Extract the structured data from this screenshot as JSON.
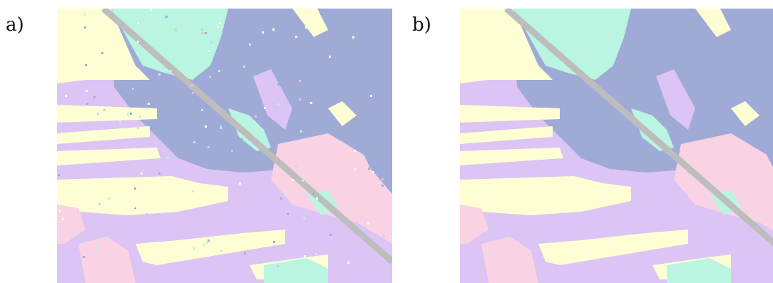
{
  "panels": [
    {
      "label": "a)"
    },
    {
      "label": "b)"
    }
  ],
  "palette": {
    "lavender": "#dcc4f4",
    "slate_blue": "#9faad7",
    "cream": "#fefed4",
    "mint": "#b9f5e0",
    "pink": "#f9d3e4",
    "road_gray": "#bdbdbd"
  }
}
